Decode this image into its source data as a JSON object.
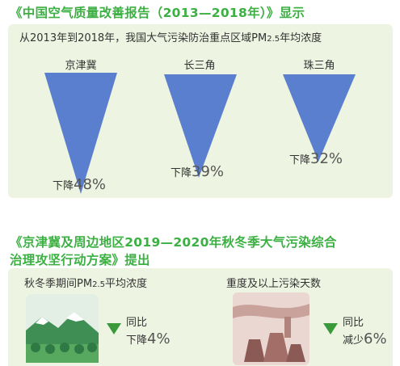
{
  "heading1": "《中国空气质量改善报告（2013—2018年）》显示",
  "panel1": {
    "intro_pre": "从2013年到2018年，我国大气污染防治重点区域PM",
    "intro_sub": "2.5",
    "intro_post": "年均浓度",
    "regions": [
      {
        "name": "京津冀",
        "drop_label": "下降",
        "drop_value": "48%",
        "percent": 48
      },
      {
        "name": "长三角",
        "drop_label": "下降",
        "drop_value": "39%",
        "percent": 39
      },
      {
        "name": "珠三角",
        "drop_label": "下降",
        "drop_value": "32%",
        "percent": 32
      }
    ],
    "triangle_color": "#5b7fcf"
  },
  "heading2_line1": "《京津冀及周边地区2019—2020年秋冬季大气污染综合",
  "heading2_line2": "治理攻坚行动方案》提出",
  "panel2": {
    "left": {
      "title_pre": "秋冬季期间PM",
      "title_sub": "2.5",
      "title_post": "平均浓度",
      "delta_line1": "同比",
      "delta_label": "下降",
      "delta_value": "4%"
    },
    "right": {
      "title": "重度及以上污染天数",
      "delta_line1": "同比",
      "delta_label": "减少",
      "delta_value": "6%"
    },
    "arrow_color": "#3a9a3a"
  },
  "colors": {
    "heading": "#3cb043",
    "panel_bg": "#edf4e1"
  }
}
